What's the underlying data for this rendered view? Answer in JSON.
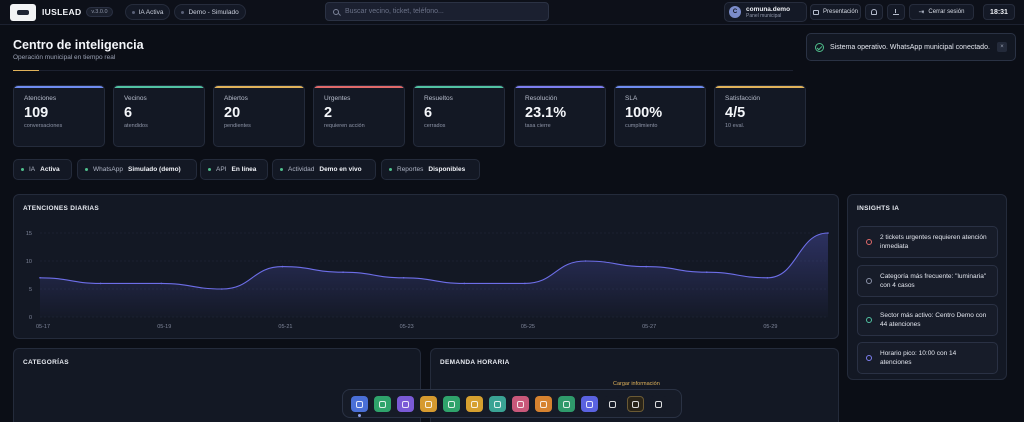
{
  "topbar": {
    "brand": "IUSLEAD",
    "version": "v.3.0.0",
    "chip_ia": "IA Activa",
    "chip_demo": "Demo - Simulado",
    "search_placeholder": "Buscar vecino, ticket, teléfono...",
    "user_initial": "C",
    "user_name": "comuna.demo",
    "user_role": "Panel municipal",
    "presentation_label": "Presentación",
    "logout_label": "Cerrar sesión",
    "clock": "18:31"
  },
  "header": {
    "title": "Centro de inteligencia",
    "subtitle": "Operación municipal en tiempo real"
  },
  "toast": {
    "message": "Sistema operativo. WhatsApp municipal conectado.",
    "close": "×"
  },
  "kpis": [
    {
      "label": "Atenciones",
      "value": "109",
      "sub": "conversaciones",
      "color": "#6f8cf0"
    },
    {
      "label": "Vecinos",
      "value": "6",
      "sub": "atendidos",
      "color": "#52c3a3"
    },
    {
      "label": "Abiertos",
      "value": "20",
      "sub": "pendientes",
      "color": "#e0b25a"
    },
    {
      "label": "Urgentes",
      "value": "2",
      "sub": "requieren acción",
      "color": "#e06a6a"
    },
    {
      "label": "Resueltos",
      "value": "6",
      "sub": "cerrados",
      "color": "#52c3a3"
    },
    {
      "label": "Resolución",
      "value": "23.1%",
      "sub": "tasa cierre",
      "color": "#7d7ff0"
    },
    {
      "label": "SLA",
      "value": "100%",
      "sub": "cumplimiento",
      "color": "#6f8cf0"
    },
    {
      "label": "Satisfacción",
      "value": "4/5",
      "sub": "10 eval.",
      "color": "#e0b25a"
    }
  ],
  "status": [
    {
      "label": "IA",
      "value": "Activa"
    },
    {
      "label": "WhatsApp",
      "value": "Simulado (demo)"
    },
    {
      "label": "API",
      "value": "En línea"
    },
    {
      "label": "Actividad",
      "value": "Demo en vivo"
    },
    {
      "label": "Reportes",
      "value": "Disponibles"
    }
  ],
  "panels": {
    "daily": "ATENCIONES DIARIAS",
    "insights": "INSIGHTS IA",
    "categories": "CATEGORÍAS",
    "hourly": "DEMANDA HORARIA"
  },
  "chart_data": {
    "type": "area",
    "title": "ATENCIONES DIARIAS",
    "x": [
      "05-17",
      "05-18",
      "05-19",
      "05-20",
      "05-21",
      "05-22",
      "05-23",
      "05-24",
      "05-25",
      "05-26",
      "05-27",
      "05-28",
      "05-29",
      "05-30"
    ],
    "values": [
      7,
      6,
      6,
      5,
      9,
      8,
      7,
      6,
      6,
      10,
      9,
      8,
      7,
      15
    ],
    "x_tick_labels": [
      "05-17",
      "05-19",
      "05-21",
      "05-23",
      "05-25",
      "05-27",
      "05-29"
    ],
    "y_ticks": [
      0,
      5,
      10,
      15
    ],
    "ylim": [
      0,
      15
    ],
    "grid": true,
    "line_color": "#6d6ee8"
  },
  "insights": [
    {
      "text": "2 tickets urgentes requieren atención inmediata",
      "icon": "alert-icon",
      "color": "#e06a6a"
    },
    {
      "text": "Categoría más frecuente: \"luminaria\" con 4 casos",
      "icon": "bar-chart-icon",
      "color": "#8b92a8"
    },
    {
      "text": "Sector más activo: Centro Demo con 44 atenciones",
      "icon": "map-pin-icon",
      "color": "#52c3a3"
    },
    {
      "text": "Horario pico: 10:00 con 14 atenciones",
      "icon": "clock-icon",
      "color": "#7d7ff0"
    }
  ],
  "dock": {
    "tooltip": "Cargar información",
    "items": [
      {
        "name": "dashboard-icon",
        "color": "#4a6fd6"
      },
      {
        "name": "chat-icon",
        "color": "#2fa36b"
      },
      {
        "name": "message-icon",
        "color": "#7a5ad6"
      },
      {
        "name": "document-icon",
        "color": "#d69a2f"
      },
      {
        "name": "map-icon",
        "color": "#2fa36b"
      },
      {
        "name": "file-icon",
        "color": "#d6a02f"
      },
      {
        "name": "chart-icon",
        "color": "#3aa394"
      },
      {
        "name": "calendar-icon",
        "color": "#c9587a"
      },
      {
        "name": "report-icon",
        "color": "#d6822f"
      },
      {
        "name": "users-icon",
        "color": "#2f9a6b"
      },
      {
        "name": "clipboard-icon",
        "color": "#5a62e0"
      },
      {
        "name": "page-icon",
        "color": "#161b27"
      },
      {
        "name": "upload-icon",
        "color": "#2a2418"
      },
      {
        "name": "send-icon",
        "color": "#161b27"
      }
    ]
  }
}
